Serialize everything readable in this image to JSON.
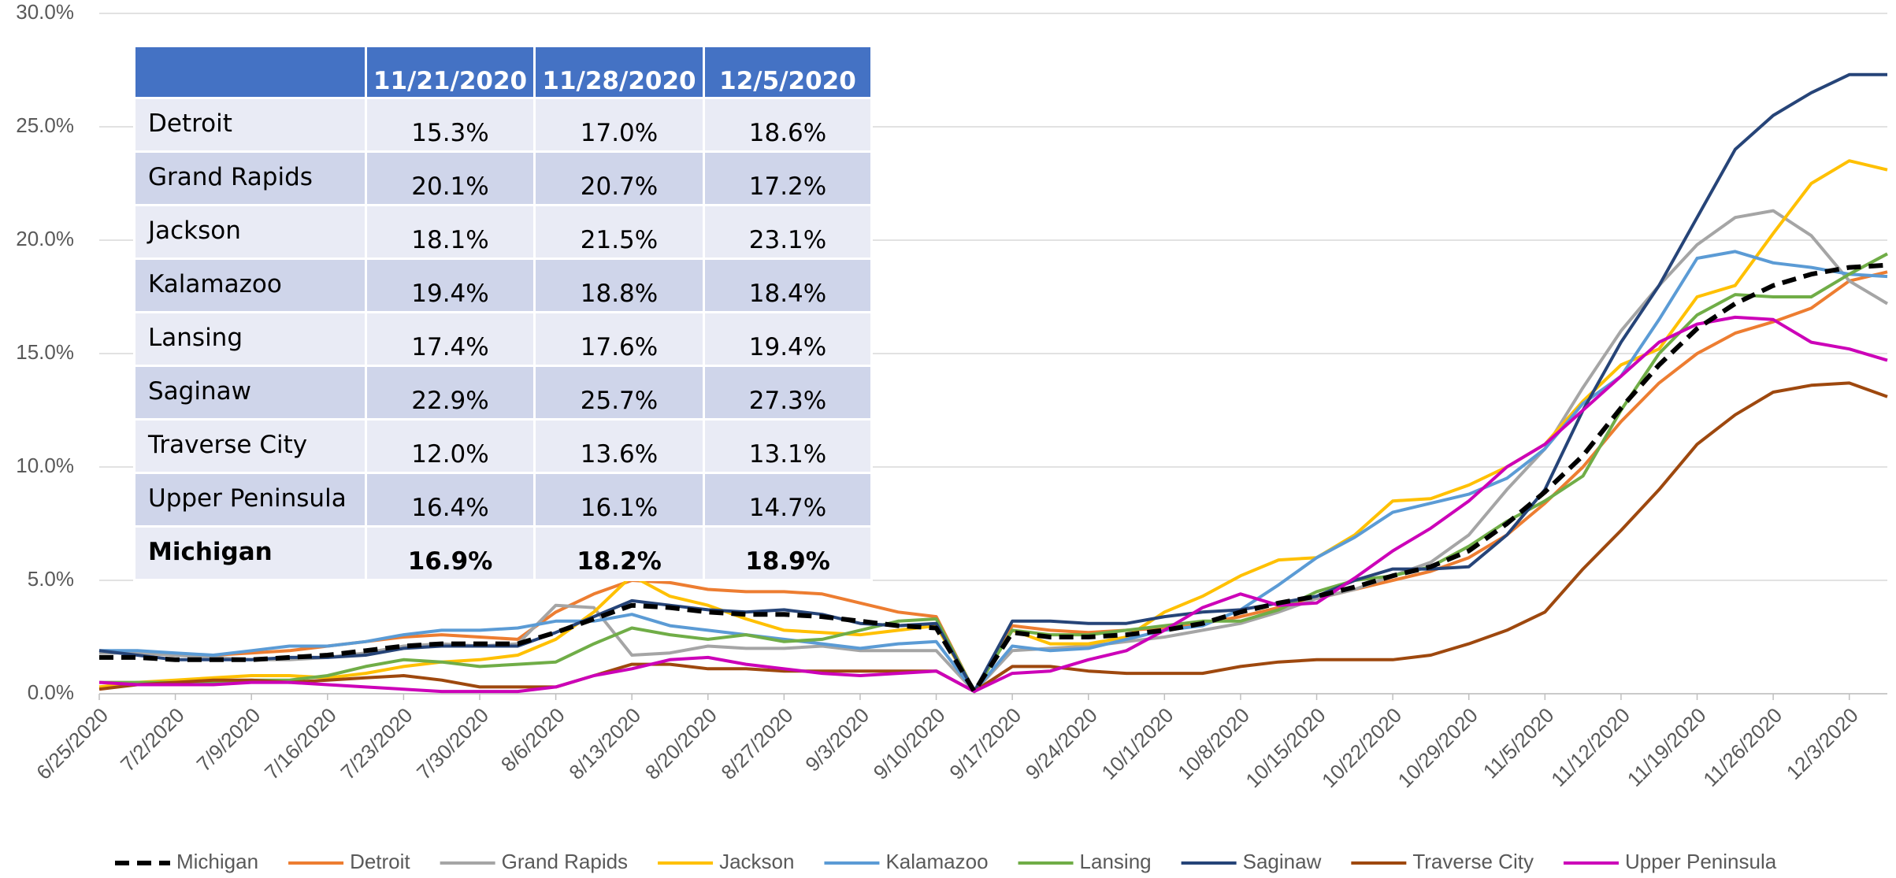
{
  "chart_data": {
    "type": "line",
    "categories": [
      "6/25/2020",
      null,
      "7/2/2020",
      null,
      "7/9/2020",
      null,
      "7/16/2020",
      null,
      "7/23/2020",
      null,
      "7/30/2020",
      null,
      "8/6/2020",
      null,
      "8/13/2020",
      null,
      "8/20/2020",
      null,
      "8/27/2020",
      null,
      "9/3/2020",
      null,
      "9/10/2020",
      null,
      "9/17/2020",
      null,
      "9/24/2020",
      null,
      "10/1/2020",
      null,
      "10/8/2020",
      null,
      "10/15/2020",
      null,
      "10/22/2020",
      null,
      "10/29/2020",
      null,
      "11/5/2020",
      null,
      "11/12/2020",
      null,
      "11/19/2020",
      null,
      "11/26/2020",
      null,
      "12/3/2020",
      null
    ],
    "ylim": [
      0,
      30
    ],
    "yticks": [
      {
        "value": 0,
        "label": "0.0%"
      },
      {
        "value": 5,
        "label": "5.0%"
      },
      {
        "value": 10,
        "label": "10.0%"
      },
      {
        "value": 15,
        "label": "15.0%"
      },
      {
        "value": 20,
        "label": "20.0%"
      },
      {
        "value": 25,
        "label": "25.0%"
      },
      {
        "value": 30,
        "label": "30.0%"
      }
    ],
    "grid": true,
    "legend": "bottom",
    "series": [
      {
        "name": "Michigan",
        "color": "#000000",
        "style": "dashed",
        "values": [
          1.6,
          1.6,
          1.5,
          1.5,
          1.5,
          1.6,
          1.7,
          1.9,
          2.1,
          2.2,
          2.2,
          2.2,
          2.7,
          3.3,
          3.9,
          3.8,
          3.6,
          3.5,
          3.5,
          3.4,
          3.2,
          3.0,
          2.9,
          0.1,
          2.7,
          2.5,
          2.5,
          2.6,
          2.8,
          3.1,
          3.6,
          4.0,
          4.3,
          4.7,
          5.2,
          5.6,
          6.3,
          7.5,
          8.9,
          10.5,
          12.6,
          14.5,
          16.1,
          17.2,
          18.0,
          18.5,
          18.8,
          18.9
        ]
      },
      {
        "name": "Detroit",
        "color": "#ed7d31",
        "values": [
          1.9,
          1.8,
          1.7,
          1.7,
          1.8,
          1.9,
          2.1,
          2.3,
          2.5,
          2.6,
          2.5,
          2.4,
          3.6,
          4.4,
          5.0,
          4.9,
          4.6,
          4.5,
          4.5,
          4.4,
          4.0,
          3.6,
          3.4,
          0.1,
          3.0,
          2.8,
          2.7,
          2.8,
          2.9,
          3.1,
          3.4,
          3.8,
          4.2,
          4.6,
          5.0,
          5.4,
          6.0,
          7.0,
          8.4,
          10.0,
          12.0,
          13.7,
          15.0,
          15.9,
          16.4,
          17.0,
          18.2,
          18.6
        ]
      },
      {
        "name": "Grand Rapids",
        "color": "#a5a5a5",
        "values": [
          1.8,
          1.8,
          1.7,
          1.6,
          1.5,
          1.5,
          1.6,
          1.8,
          2.1,
          2.2,
          2.1,
          2.2,
          3.9,
          3.8,
          1.7,
          1.8,
          2.1,
          2.0,
          2.0,
          2.1,
          1.9,
          1.9,
          1.9,
          0.1,
          1.9,
          2.0,
          2.1,
          2.3,
          2.5,
          2.8,
          3.1,
          3.6,
          4.2,
          4.6,
          5.2,
          5.8,
          7.0,
          9.0,
          10.8,
          13.5,
          16.0,
          18.0,
          19.8,
          21.0,
          21.3,
          20.2,
          18.2,
          17.2
        ]
      },
      {
        "name": "Jackson",
        "color": "#ffc000",
        "values": [
          0.3,
          0.5,
          0.6,
          0.7,
          0.8,
          0.8,
          0.7,
          0.9,
          1.2,
          1.4,
          1.5,
          1.7,
          2.4,
          3.6,
          5.2,
          4.3,
          3.9,
          3.3,
          2.8,
          2.7,
          2.6,
          2.8,
          3.0,
          0.1,
          2.8,
          2.2,
          2.2,
          2.5,
          3.6,
          4.3,
          5.2,
          5.9,
          6.0,
          7.0,
          8.5,
          8.6,
          9.2,
          10.0,
          11.0,
          12.9,
          14.5,
          15.2,
          17.5,
          18.0,
          20.3,
          22.5,
          23.5,
          23.1
        ]
      },
      {
        "name": "Kalamazoo",
        "color": "#5b9bd5",
        "values": [
          1.9,
          1.9,
          1.8,
          1.7,
          1.9,
          2.1,
          2.1,
          2.3,
          2.6,
          2.8,
          2.8,
          2.9,
          3.2,
          3.2,
          3.5,
          3.0,
          2.8,
          2.6,
          2.4,
          2.2,
          2.0,
          2.2,
          2.3,
          0.1,
          2.1,
          1.9,
          2.0,
          2.4,
          2.8,
          3.0,
          3.7,
          4.8,
          6.0,
          6.9,
          8.0,
          8.4,
          8.8,
          9.5,
          10.8,
          12.8,
          14.0,
          16.5,
          19.2,
          19.5,
          19.0,
          18.8,
          18.5,
          18.4
        ]
      },
      {
        "name": "Lansing",
        "color": "#70ad47",
        "values": [
          0.5,
          0.5,
          0.5,
          0.5,
          0.6,
          0.6,
          0.8,
          1.2,
          1.5,
          1.4,
          1.2,
          1.3,
          1.4,
          2.2,
          2.9,
          2.6,
          2.4,
          2.6,
          2.3,
          2.4,
          2.8,
          3.2,
          3.3,
          0.1,
          2.8,
          2.6,
          2.6,
          2.8,
          3.0,
          3.2,
          3.2,
          3.7,
          4.5,
          5.0,
          5.2,
          5.6,
          6.5,
          7.6,
          8.5,
          9.6,
          12.5,
          15.0,
          16.7,
          17.6,
          17.5,
          17.5,
          18.5,
          19.4
        ]
      },
      {
        "name": "Saginaw",
        "color": "#264478",
        "values": [
          1.9,
          1.7,
          1.5,
          1.5,
          1.5,
          1.6,
          1.6,
          1.7,
          2.0,
          2.1,
          2.1,
          2.1,
          2.7,
          3.4,
          4.1,
          3.9,
          3.7,
          3.6,
          3.7,
          3.5,
          3.1,
          3.0,
          3.1,
          0.1,
          3.2,
          3.2,
          3.1,
          3.1,
          3.4,
          3.6,
          3.7,
          4.0,
          4.3,
          5.0,
          5.5,
          5.5,
          5.6,
          7.0,
          9.0,
          12.5,
          15.5,
          18.0,
          21.0,
          24.0,
          25.5,
          26.5,
          27.3,
          27.3
        ]
      },
      {
        "name": "Traverse City",
        "color": "#9e480e",
        "values": [
          0.2,
          0.4,
          0.5,
          0.6,
          0.6,
          0.5,
          0.6,
          0.7,
          0.8,
          0.6,
          0.3,
          0.3,
          0.3,
          0.8,
          1.3,
          1.3,
          1.1,
          1.1,
          1.0,
          1.0,
          1.0,
          1.0,
          1.0,
          0.1,
          1.2,
          1.2,
          1.0,
          0.9,
          0.9,
          0.9,
          1.2,
          1.4,
          1.5,
          1.5,
          1.5,
          1.7,
          2.2,
          2.8,
          3.6,
          5.5,
          7.2,
          9.0,
          11.0,
          12.3,
          13.3,
          13.6,
          13.7,
          13.1
        ]
      },
      {
        "name": "Upper Peninsula",
        "color": "#cc00b8",
        "values": [
          0.5,
          0.4,
          0.4,
          0.4,
          0.5,
          0.5,
          0.4,
          0.3,
          0.2,
          0.1,
          0.1,
          0.1,
          0.3,
          0.8,
          1.1,
          1.5,
          1.6,
          1.3,
          1.1,
          0.9,
          0.8,
          0.9,
          1.0,
          0.1,
          0.9,
          1.0,
          1.5,
          1.9,
          2.8,
          3.8,
          4.4,
          3.9,
          4.0,
          5.1,
          6.3,
          7.3,
          8.5,
          10.0,
          11.0,
          12.5,
          14.0,
          15.5,
          16.3,
          16.6,
          16.5,
          15.5,
          15.2,
          14.7
        ]
      }
    ]
  },
  "table": {
    "columns": [
      "11/21/2020",
      "11/28/2020",
      "12/5/2020"
    ],
    "rows": [
      [
        "Detroit",
        "15.3%",
        "17.0%",
        "18.6%"
      ],
      [
        "Grand Rapids",
        "20.1%",
        "20.7%",
        "17.2%"
      ],
      [
        "Jackson",
        "18.1%",
        "21.5%",
        "23.1%"
      ],
      [
        "Kalamazoo",
        "19.4%",
        "18.8%",
        "18.4%"
      ],
      [
        "Lansing",
        "17.4%",
        "17.6%",
        "19.4%"
      ],
      [
        "Saginaw",
        "22.9%",
        "25.7%",
        "27.3%"
      ],
      [
        "Traverse City",
        "12.0%",
        "13.6%",
        "13.1%"
      ],
      [
        "Upper Peninsula",
        "16.4%",
        "16.1%",
        "14.7%"
      ],
      [
        "Michigan",
        "16.9%",
        "18.2%",
        "18.9%"
      ]
    ]
  }
}
